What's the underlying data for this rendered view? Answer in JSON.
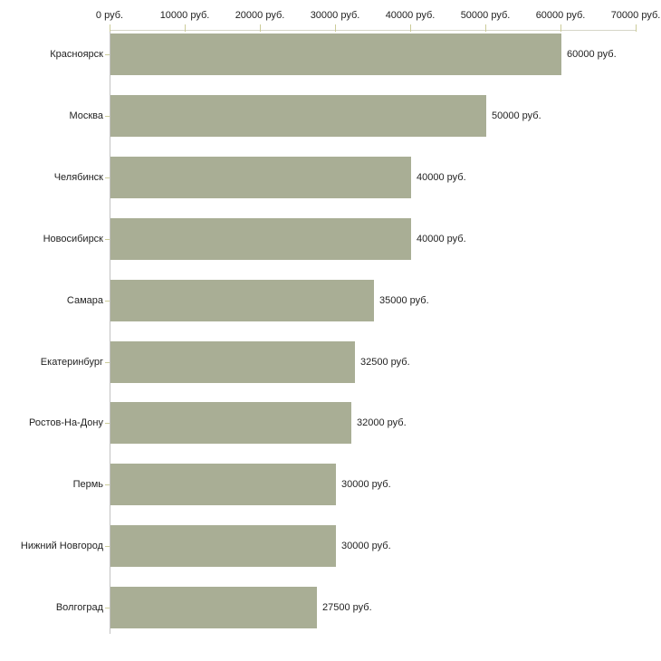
{
  "chart_data": {
    "type": "bar",
    "orientation": "horizontal",
    "categories": [
      "Красноярск",
      "Москва",
      "Челябинск",
      "Новосибирск",
      "Самара",
      "Екатеринбург",
      "Ростов-На-Дону",
      "Пермь",
      "Нижний Новгород",
      "Волгоград"
    ],
    "values": [
      60000,
      50000,
      40000,
      40000,
      35000,
      32500,
      32000,
      30000,
      30000,
      27500
    ],
    "value_labels": [
      "60000 руб.",
      "50000 руб.",
      "40000 руб.",
      "40000 руб.",
      "35000 руб.",
      "32500 руб.",
      "32000 руб.",
      "30000 руб.",
      "30000 руб.",
      "27500 руб."
    ],
    "x_axis": {
      "position": "top",
      "min": 0,
      "max": 70000,
      "tick_values": [
        0,
        10000,
        20000,
        30000,
        40000,
        50000,
        60000,
        70000
      ],
      "tick_labels": [
        "0 руб.",
        "10000 руб.",
        "20000 руб.",
        "30000 руб.",
        "40000 руб.",
        "50000 руб.",
        "60000 руб.",
        "70000 руб."
      ]
    },
    "grid": false,
    "legend": false,
    "colors": {
      "bar": "#a9ae95",
      "x_axis_line": "#d6d6c8",
      "y_axis_line": "#c2c2c2",
      "tick": "#cccc99",
      "text": "#1f1f1f",
      "background": "#ffffff"
    }
  }
}
